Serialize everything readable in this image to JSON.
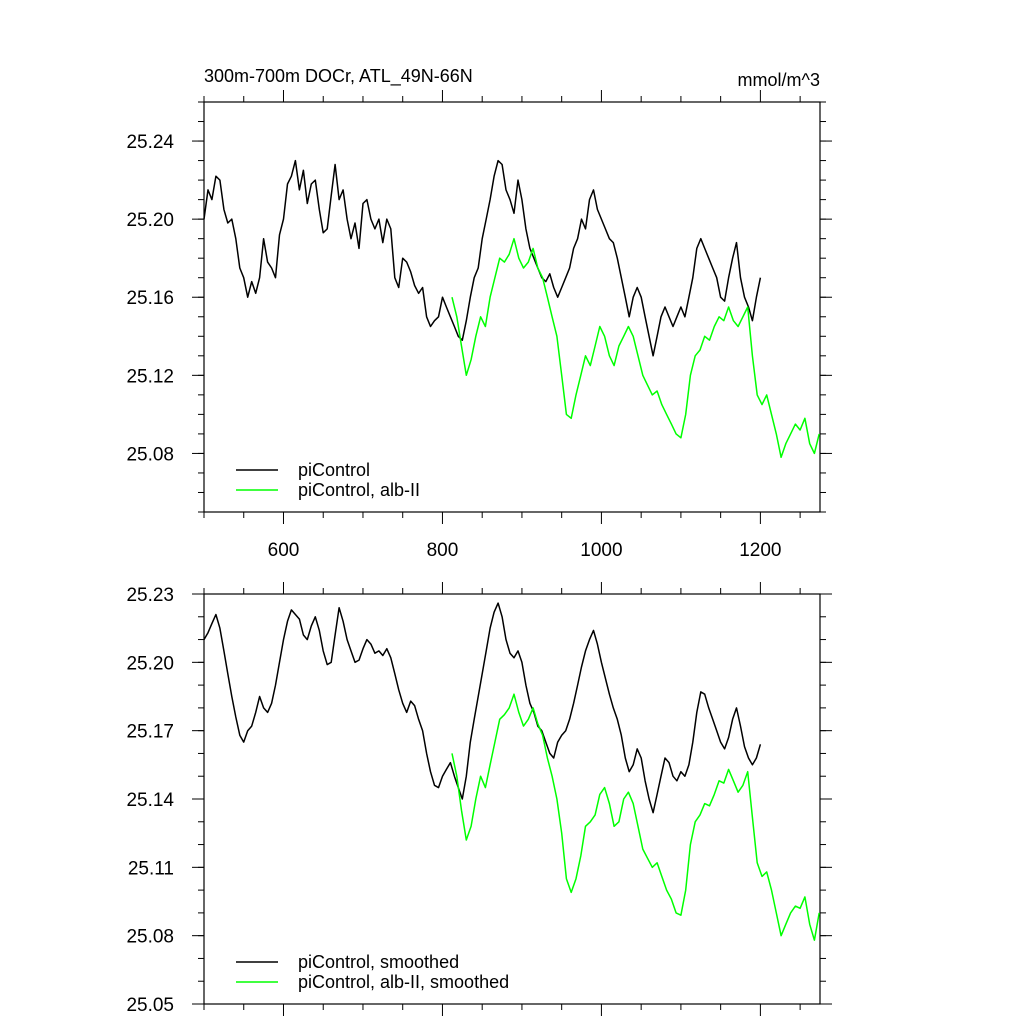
{
  "chart_data": [
    {
      "type": "line",
      "title": "300m-700m DOCr, ATL_49N-66N",
      "units": "mmol/m^3",
      "xlim": [
        500,
        1275
      ],
      "ylim": [
        25.05,
        25.26
      ],
      "x_ticks": [
        600,
        800,
        1000,
        1200
      ],
      "x_tick_labels": [
        "600",
        "800",
        "1000",
        "1200"
      ],
      "y_ticks": [
        25.08,
        25.12,
        25.16,
        25.2,
        25.24
      ],
      "y_tick_labels": [
        "25.08",
        "25.12",
        "25.16",
        "25.20",
        "25.24"
      ],
      "legend": "bottom-left",
      "series": [
        {
          "name": "piControl",
          "color": "#000000",
          "x": [
            500,
            505,
            510,
            515,
            520,
            525,
            530,
            535,
            540,
            545,
            550,
            555,
            560,
            565,
            570,
            575,
            580,
            585,
            590,
            595,
            600,
            605,
            610,
            615,
            620,
            625,
            630,
            635,
            640,
            645,
            650,
            655,
            660,
            665,
            670,
            675,
            680,
            685,
            690,
            695,
            700,
            705,
            710,
            715,
            720,
            725,
            730,
            735,
            740,
            745,
            750,
            755,
            760,
            765,
            770,
            775,
            780,
            785,
            790,
            795,
            800,
            805,
            810,
            815,
            820,
            825,
            830,
            835,
            840,
            845,
            850,
            855,
            860,
            865,
            870,
            875,
            880,
            885,
            890,
            895,
            900,
            905,
            910,
            915,
            920,
            925,
            930,
            935,
            940,
            945,
            950,
            955,
            960,
            965,
            970,
            975,
            980,
            985,
            990,
            995,
            1000,
            1005,
            1010,
            1015,
            1020,
            1025,
            1030,
            1035,
            1040,
            1045,
            1050,
            1055,
            1060,
            1065,
            1070,
            1075,
            1080,
            1085,
            1090,
            1095,
            1100,
            1105,
            1110,
            1115,
            1120,
            1125,
            1130,
            1135,
            1140,
            1145,
            1150,
            1155,
            1160,
            1165,
            1170,
            1175,
            1180,
            1185,
            1190,
            1195,
            1200
          ],
          "values": [
            25.2,
            25.215,
            25.21,
            25.222,
            25.22,
            25.205,
            25.198,
            25.2,
            25.19,
            25.175,
            25.17,
            25.16,
            25.168,
            25.162,
            25.17,
            25.19,
            25.178,
            25.175,
            25.17,
            25.192,
            25.2,
            25.218,
            25.222,
            25.23,
            25.215,
            25.225,
            25.208,
            25.218,
            25.22,
            25.205,
            25.193,
            25.195,
            25.212,
            25.228,
            25.21,
            25.215,
            25.2,
            25.19,
            25.198,
            25.185,
            25.208,
            25.21,
            25.2,
            25.195,
            25.2,
            25.188,
            25.2,
            25.195,
            25.17,
            25.165,
            25.18,
            25.178,
            25.173,
            25.166,
            25.162,
            25.165,
            25.15,
            25.145,
            25.148,
            25.15,
            25.16,
            25.155,
            25.15,
            25.145,
            25.14,
            25.138,
            25.148,
            25.16,
            25.17,
            25.175,
            25.19,
            25.2,
            25.21,
            25.222,
            25.23,
            25.228,
            25.215,
            25.21,
            25.203,
            25.22,
            25.21,
            25.195,
            25.185,
            25.18,
            25.175,
            25.17,
            25.168,
            25.172,
            25.165,
            25.16,
            25.165,
            25.17,
            25.175,
            25.185,
            25.19,
            25.2,
            25.195,
            25.21,
            25.215,
            25.205,
            25.2,
            25.195,
            25.19,
            25.188,
            25.18,
            25.17,
            25.16,
            25.15,
            25.16,
            25.165,
            25.16,
            25.15,
            25.14,
            25.13,
            25.14,
            25.15,
            25.155,
            25.15,
            25.145,
            25.15,
            25.155,
            25.15,
            25.16,
            25.17,
            25.185,
            25.19,
            25.185,
            25.18,
            25.175,
            25.17,
            25.16,
            25.158,
            25.17,
            25.18,
            25.188,
            25.17,
            25.16,
            25.155,
            25.148,
            25.16,
            25.17
          ]
        },
        {
          "name": "piControl, alb-II",
          "color": "#00ff00",
          "x": [
            812,
            818,
            824,
            830,
            836,
            842,
            848,
            854,
            860,
            866,
            872,
            878,
            884,
            890,
            896,
            902,
            908,
            914,
            920,
            926,
            932,
            938,
            944,
            950,
            956,
            962,
            968,
            974,
            980,
            986,
            992,
            998,
            1004,
            1010,
            1016,
            1022,
            1028,
            1034,
            1040,
            1046,
            1052,
            1058,
            1064,
            1070,
            1076,
            1082,
            1088,
            1094,
            1100,
            1106,
            1112,
            1118,
            1124,
            1130,
            1136,
            1142,
            1148,
            1154,
            1160,
            1166,
            1172,
            1178,
            1184,
            1190,
            1196,
            1202,
            1208,
            1214,
            1220,
            1226,
            1232,
            1238,
            1244,
            1250,
            1256,
            1262,
            1268,
            1274
          ],
          "values": [
            25.16,
            25.15,
            25.135,
            25.12,
            25.128,
            25.14,
            25.15,
            25.145,
            25.16,
            25.17,
            25.18,
            25.178,
            25.182,
            25.19,
            25.18,
            25.175,
            25.178,
            25.185,
            25.175,
            25.17,
            25.16,
            25.15,
            25.14,
            25.12,
            25.1,
            25.098,
            25.11,
            25.12,
            25.13,
            25.125,
            25.135,
            25.145,
            25.14,
            25.13,
            25.125,
            25.135,
            25.14,
            25.145,
            25.14,
            25.13,
            25.12,
            25.115,
            25.11,
            25.112,
            25.105,
            25.1,
            25.095,
            25.09,
            25.088,
            25.1,
            25.12,
            25.13,
            25.133,
            25.14,
            25.138,
            25.145,
            25.15,
            25.148,
            25.155,
            25.148,
            25.145,
            25.15,
            25.155,
            25.13,
            25.11,
            25.105,
            25.11,
            25.1,
            25.09,
            25.078,
            25.085,
            25.09,
            25.095,
            25.092,
            25.098,
            25.085,
            25.08,
            25.09
          ]
        }
      ]
    },
    {
      "type": "line",
      "xlim": [
        500,
        1275
      ],
      "ylim": [
        25.05,
        25.23
      ],
      "x_ticks": [
        600,
        800,
        1000,
        1200
      ],
      "y_ticks": [
        25.05,
        25.08,
        25.11,
        25.14,
        25.17,
        25.2,
        25.23
      ],
      "y_tick_labels": [
        "25.05",
        "25.08",
        "25.11",
        "25.14",
        "25.17",
        "25.20",
        "25.23"
      ],
      "legend": "bottom-left",
      "series": [
        {
          "name": "piControl, smoothed",
          "color": "#000000",
          "x": [
            500,
            505,
            510,
            515,
            520,
            525,
            530,
            535,
            540,
            545,
            550,
            555,
            560,
            565,
            570,
            575,
            580,
            585,
            590,
            595,
            600,
            605,
            610,
            615,
            620,
            625,
            630,
            635,
            640,
            645,
            650,
            655,
            660,
            665,
            670,
            675,
            680,
            685,
            690,
            695,
            700,
            705,
            710,
            715,
            720,
            725,
            730,
            735,
            740,
            745,
            750,
            755,
            760,
            765,
            770,
            775,
            780,
            785,
            790,
            795,
            800,
            805,
            810,
            815,
            820,
            825,
            830,
            835,
            840,
            845,
            850,
            855,
            860,
            865,
            870,
            875,
            880,
            885,
            890,
            895,
            900,
            905,
            910,
            915,
            920,
            925,
            930,
            935,
            940,
            945,
            950,
            955,
            960,
            965,
            970,
            975,
            980,
            985,
            990,
            995,
            1000,
            1005,
            1010,
            1015,
            1020,
            1025,
            1030,
            1035,
            1040,
            1045,
            1050,
            1055,
            1060,
            1065,
            1070,
            1075,
            1080,
            1085,
            1090,
            1095,
            1100,
            1105,
            1110,
            1115,
            1120,
            1125,
            1130,
            1135,
            1140,
            1145,
            1150,
            1155,
            1160,
            1165,
            1170,
            1175,
            1180,
            1185,
            1190,
            1195,
            1200
          ],
          "values": [
            25.21,
            25.213,
            25.217,
            25.221,
            25.215,
            25.205,
            25.195,
            25.185,
            25.176,
            25.168,
            25.165,
            25.17,
            25.172,
            25.178,
            25.185,
            25.18,
            25.178,
            25.182,
            25.19,
            25.2,
            25.21,
            25.218,
            25.223,
            25.221,
            25.219,
            25.212,
            25.21,
            25.216,
            25.22,
            25.214,
            25.205,
            25.199,
            25.2,
            25.212,
            25.224,
            25.218,
            25.21,
            25.205,
            25.2,
            25.201,
            25.206,
            25.21,
            25.208,
            25.204,
            25.205,
            25.203,
            25.206,
            25.202,
            25.195,
            25.188,
            25.182,
            25.178,
            25.183,
            25.181,
            25.175,
            25.17,
            25.16,
            25.152,
            25.146,
            25.145,
            25.15,
            25.153,
            25.156,
            25.15,
            25.145,
            25.14,
            25.15,
            25.165,
            25.175,
            25.185,
            25.195,
            25.205,
            25.215,
            25.222,
            25.226,
            25.22,
            25.21,
            25.204,
            25.202,
            25.205,
            25.2,
            25.19,
            25.182,
            25.178,
            25.172,
            25.17,
            25.165,
            25.16,
            25.158,
            25.165,
            25.168,
            25.17,
            25.175,
            25.182,
            25.19,
            25.198,
            25.205,
            25.21,
            25.214,
            25.208,
            25.2,
            25.193,
            25.186,
            25.18,
            25.175,
            25.168,
            25.158,
            25.152,
            25.155,
            25.162,
            25.158,
            25.148,
            25.14,
            25.134,
            25.142,
            25.15,
            25.158,
            25.156,
            25.15,
            25.148,
            25.152,
            25.15,
            25.155,
            25.165,
            25.178,
            25.187,
            25.186,
            25.18,
            25.175,
            25.17,
            25.165,
            25.162,
            25.167,
            25.175,
            25.18,
            25.172,
            25.163,
            25.158,
            25.155,
            25.158,
            25.164
          ]
        },
        {
          "name": "piControl, alb-II, smoothed",
          "color": "#00ff00",
          "x": [
            812,
            818,
            824,
            830,
            836,
            842,
            848,
            854,
            860,
            866,
            872,
            878,
            884,
            890,
            896,
            902,
            908,
            914,
            920,
            926,
            932,
            938,
            944,
            950,
            956,
            962,
            968,
            974,
            980,
            986,
            992,
            998,
            1004,
            1010,
            1016,
            1022,
            1028,
            1034,
            1040,
            1046,
            1052,
            1058,
            1064,
            1070,
            1076,
            1082,
            1088,
            1094,
            1100,
            1106,
            1112,
            1118,
            1124,
            1130,
            1136,
            1142,
            1148,
            1154,
            1160,
            1166,
            1172,
            1178,
            1184,
            1190,
            1196,
            1202,
            1208,
            1214,
            1220,
            1226,
            1232,
            1238,
            1244,
            1250,
            1256,
            1262,
            1268,
            1274
          ],
          "values": [
            25.16,
            25.15,
            25.135,
            25.122,
            25.128,
            25.14,
            25.15,
            25.145,
            25.155,
            25.165,
            25.175,
            25.177,
            25.18,
            25.186,
            25.178,
            25.172,
            25.175,
            25.18,
            25.173,
            25.168,
            25.158,
            25.15,
            25.14,
            25.125,
            25.105,
            25.099,
            25.105,
            25.115,
            25.128,
            25.13,
            25.133,
            25.142,
            25.145,
            25.138,
            25.128,
            25.13,
            25.14,
            25.143,
            25.138,
            25.128,
            25.118,
            25.114,
            25.11,
            25.112,
            25.106,
            25.1,
            25.096,
            25.09,
            25.089,
            25.1,
            25.12,
            25.13,
            25.133,
            25.138,
            25.137,
            25.142,
            25.148,
            25.147,
            25.153,
            25.148,
            25.143,
            25.146,
            25.152,
            25.132,
            25.112,
            25.106,
            25.108,
            25.1,
            25.09,
            25.08,
            25.085,
            25.09,
            25.093,
            25.092,
            25.097,
            25.085,
            25.078,
            25.09
          ]
        }
      ]
    }
  ]
}
